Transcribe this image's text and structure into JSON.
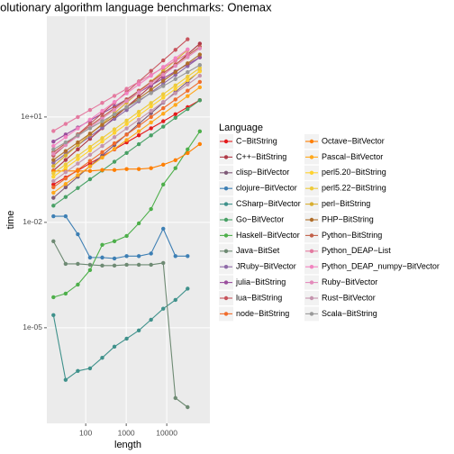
{
  "chart_data": {
    "type": "line",
    "title": "Evolutionary algorithm language benchmarks: Onemax",
    "x_label": "length",
    "y_label": "time",
    "legend_title": "Language",
    "legend": "right",
    "log_x": true,
    "log_y": true,
    "grid": true,
    "x": [
      16,
      32,
      64,
      128,
      256,
      512,
      1024,
      2048,
      4096,
      8192,
      16384,
      32768,
      65536
    ],
    "xlim": [
      11,
      116000
    ],
    "xticks": [
      100,
      1000,
      10000
    ],
    "ylim": [
      1.9e-08,
      7400
    ],
    "yticks": [
      {
        "value": 10,
        "label": "1e+01"
      },
      {
        "value": 0.01,
        "label": "1e-02"
      },
      {
        "value": 1e-05,
        "label": "1e-05"
      }
    ],
    "series": [
      {
        "name": "C−BitString",
        "color": "#e41a1c",
        "values": [
          0.12,
          0.19,
          0.3,
          0.48,
          0.76,
          1.2,
          1.9,
          3.01,
          4.78,
          7.57,
          12,
          19.02,
          30.14
        ]
      },
      {
        "name": "C++−BitString",
        "color": "#b03a48",
        "values": [
          0.3,
          0.6,
          1.2,
          2.4,
          4.8,
          9.6,
          19.2,
          38.4,
          76.8,
          153.6,
          307.2,
          614.4,
          1228.8
        ]
      },
      {
        "name": "clisp−BitVector",
        "color": "#7e5a78",
        "values": [
          0.05,
          0.1,
          0.2,
          0.4,
          0.8,
          1.6,
          3.2,
          6.4,
          12.8,
          25.6,
          51.2,
          102.4,
          204.8
        ]
      },
      {
        "name": "clojure−BitVector",
        "color": "#3d7fb4",
        "values": [
          0.015,
          0.015,
          0.0046,
          0.001,
          0.001,
          0.00094,
          0.0011,
          0.0011,
          0.0013,
          0.0066,
          0.0011,
          0.0011,
          null
        ]
      },
      {
        "name": "CSharp−BitVector",
        "color": "#3f918b",
        "values": [
          2.3e-05,
          3.3e-07,
          5.9e-07,
          7e-07,
          1.4e-06,
          2.9e-06,
          4.9e-06,
          8.4e-06,
          1.7e-05,
          3.5e-05,
          6.2e-05,
          0.00013,
          null
        ]
      },
      {
        "name": "Go−BitVector",
        "color": "#48a065",
        "values": [
          0.03,
          0.053,
          0.095,
          0.169,
          0.3,
          0.533,
          0.949,
          1.687,
          3,
          5.334,
          9.486,
          16.87,
          30
        ]
      },
      {
        "name": "Haskell−BitVector",
        "color": "#4daf4a",
        "values": [
          7.4e-05,
          9.4e-05,
          0.00017,
          0.00044,
          0.0023,
          0.0029,
          0.0041,
          0.0094,
          0.024,
          0.12,
          0.35,
          1.2,
          3.9
        ]
      },
      {
        "name": "Java−BitSet",
        "color": "#6e8a73",
        "values": [
          0.0029,
          0.00066,
          0.00066,
          0.00062,
          0.00059,
          0.00059,
          0.00062,
          0.00062,
          0.00062,
          0.0007,
          1e-07,
          5.5e-08,
          null
        ]
      },
      {
        "name": "JRuby−BitVector",
        "color": "#8e6aa7",
        "values": [
          0.5,
          0.889,
          1.581,
          2.81,
          5,
          8.89,
          15.81,
          28.1,
          50,
          88.9,
          158.1,
          281.2,
          500
        ]
      },
      {
        "name": "julia−BitString",
        "color": "#9a4e9d",
        "values": [
          2,
          3.17,
          5.02,
          7.96,
          12.6,
          20,
          31.7,
          50.2,
          79.6,
          126,
          200,
          317,
          502
        ]
      },
      {
        "name": "lua−BitString",
        "color": "#c7545d",
        "values": [
          0.8,
          1.6,
          3.2,
          6.4,
          12.8,
          25.6,
          51.2,
          102.4,
          204.8,
          409.6,
          819.2,
          1638.4,
          null
        ]
      },
      {
        "name": "node−BitString",
        "color": "#f06c2c",
        "values": [
          0.1,
          0.178,
          0.316,
          0.562,
          1,
          1.78,
          3.16,
          5.62,
          10,
          17.8,
          31.6,
          56.2,
          100
        ]
      },
      {
        "name": "Octave−BitVector",
        "color": "#ff7f00",
        "values": [
          0.29,
          0.29,
          0.29,
          0.29,
          0.31,
          0.31,
          0.33,
          0.33,
          0.35,
          0.44,
          0.59,
          0.94,
          1.7
        ]
      },
      {
        "name": "Pascal−BitVector",
        "color": "#ffa71a",
        "values": [
          0.07,
          0.124,
          0.221,
          0.394,
          0.7,
          1.24,
          2.21,
          3.94,
          7,
          12.4,
          22.1,
          39.4,
          70
        ]
      },
      {
        "name": "perl5.20−BitString",
        "color": "#ffd22f",
        "values": [
          0.2,
          0.356,
          0.632,
          1.12,
          2,
          3.56,
          6.32,
          11.2,
          20,
          35.6,
          63.2,
          112,
          200
        ]
      },
      {
        "name": "perl5.22−BitString",
        "color": "#eecb3a",
        "values": [
          0.25,
          0.445,
          0.791,
          1.41,
          2.5,
          4.45,
          7.91,
          14.1,
          25,
          44.5,
          79.1,
          141,
          250
        ]
      },
      {
        "name": "perl−BitString",
        "color": "#d8ae30",
        "values": [
          0.4,
          0.8,
          1.6,
          3.2,
          6.4,
          12.8,
          25.6,
          51.2,
          102.4,
          204.8,
          409.6,
          819.2,
          null
        ]
      },
      {
        "name": "PHP−BitString",
        "color": "#b06e2a",
        "values": [
          0.6,
          1.07,
          1.9,
          3.37,
          6,
          10.7,
          19,
          33.7,
          60,
          107,
          190,
          337,
          600
        ]
      },
      {
        "name": "Python−BitString",
        "color": "#c26049",
        "values": [
          1,
          1.78,
          3.16,
          5.62,
          10,
          17.8,
          31.6,
          56.2,
          100,
          178,
          316,
          562,
          1000
        ]
      },
      {
        "name": "Python_DEAP−List",
        "color": "#e47aa0",
        "values": [
          4,
          6.34,
          10,
          15.9,
          25.2,
          40,
          63.4,
          100,
          159,
          252,
          400,
          634,
          null
        ]
      },
      {
        "name": "Python_DEAP_numpy−BitVector",
        "color": "#f283c0",
        "values": [
          1.5,
          2.67,
          4.74,
          8.43,
          15,
          26.7,
          47.4,
          84.3,
          150,
          267,
          474,
          843,
          null
        ]
      },
      {
        "name": "Ruby−BitVector",
        "color": "#e38abb",
        "values": [
          0.9,
          1.6,
          2.85,
          5.06,
          9,
          16,
          28.5,
          50.6,
          90,
          160,
          285,
          506,
          900
        ]
      },
      {
        "name": "Rust−BitVector",
        "color": "#c594ae",
        "values": [
          0.15,
          0.267,
          0.474,
          0.843,
          1.5,
          2.67,
          4.74,
          8.43,
          15,
          26.7,
          47.4,
          84.3,
          150
        ]
      },
      {
        "name": "Scala−BitString",
        "color": "#999999",
        "values": [
          1.2,
          1.9,
          3.01,
          4.78,
          7.57,
          12,
          19,
          30.1,
          47.8,
          75.7,
          120,
          190,
          301
        ]
      }
    ]
  }
}
